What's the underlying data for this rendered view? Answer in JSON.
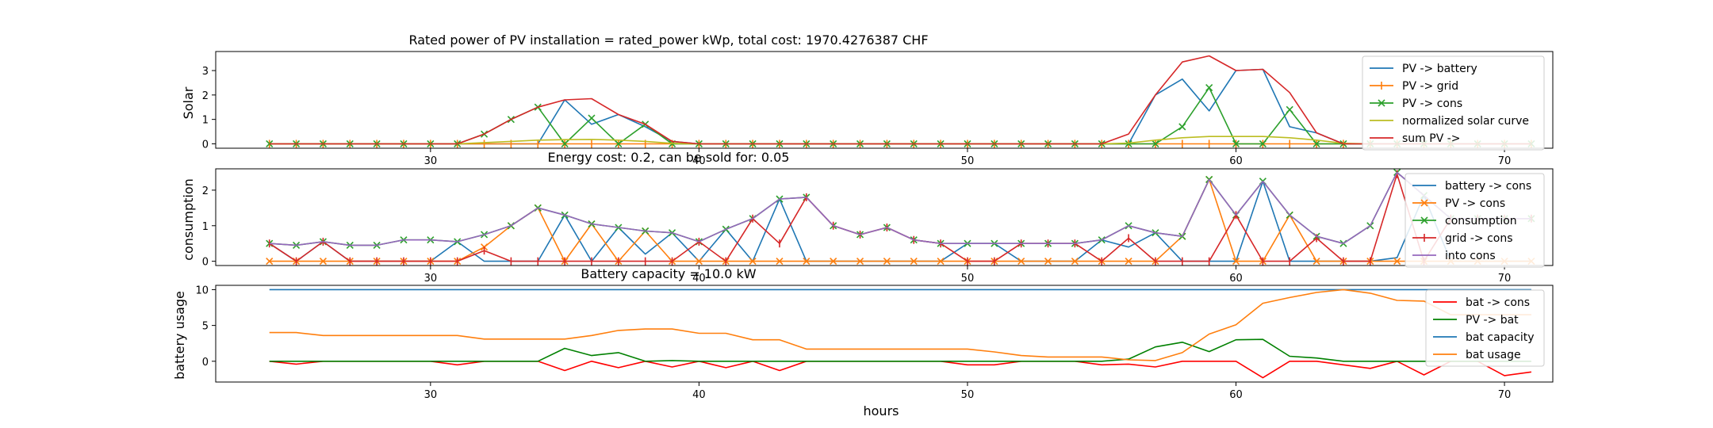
{
  "colors": {
    "c_blue": "#1f77b4",
    "c_orange": "#ff7f0e",
    "c_green": "#2ca02c",
    "c_olive": "#bcbd22",
    "c_red": "#d62728",
    "c_purple": "#9467bd",
    "red": "#ff0000",
    "green": "#008000"
  },
  "chart_data": [
    {
      "type": "line",
      "title": "Rated power of PV installation = rated_power kWp, total cost: 1970.4276387 CHF",
      "xlabel": "",
      "ylabel": "Solar",
      "xlim": [
        22,
        71.8
      ],
      "ylim": [
        -0.18,
        3.78
      ],
      "xticks": [
        30,
        40,
        50,
        60,
        70
      ],
      "yticks": [
        0,
        1,
        2,
        3
      ],
      "legend_position": "top-right",
      "grid": false,
      "x": [
        24,
        25,
        26,
        27,
        28,
        29,
        30,
        31,
        32,
        33,
        34,
        35,
        36,
        37,
        38,
        39,
        40,
        41,
        42,
        43,
        44,
        45,
        46,
        47,
        48,
        49,
        50,
        51,
        52,
        53,
        54,
        55,
        56,
        57,
        58,
        59,
        60,
        61,
        62,
        63,
        64,
        65,
        66,
        67,
        68,
        69,
        70,
        71
      ],
      "series": [
        {
          "name": "PV -> battery",
          "color": "c_blue",
          "marker": "none",
          "values": [
            0,
            0,
            0,
            0,
            0,
            0,
            0,
            0,
            0,
            0,
            0,
            1.8,
            0.8,
            1.2,
            0.7,
            0.1,
            0,
            0,
            0,
            0,
            0,
            0,
            0,
            0,
            0,
            0,
            0,
            0,
            0,
            0,
            0,
            0,
            0,
            2,
            2.65,
            1.35,
            3,
            3.05,
            0.7,
            0.45,
            0,
            0,
            0,
            0,
            0,
            0,
            0,
            0
          ]
        },
        {
          "name": "PV -> grid",
          "color": "c_orange",
          "marker": "|",
          "values": [
            0,
            0,
            0,
            0,
            0,
            0,
            0,
            0,
            0,
            0,
            0,
            0,
            0,
            0,
            0,
            0,
            0,
            0,
            0,
            0,
            0,
            0,
            0,
            0,
            0,
            0,
            0,
            0,
            0,
            0,
            0,
            0,
            0,
            0,
            0,
            0,
            0,
            0,
            0,
            0,
            0,
            0,
            0,
            0,
            0,
            0,
            0,
            0
          ]
        },
        {
          "name": "PV -> cons",
          "color": "c_green",
          "marker": "x",
          "values": [
            0,
            0,
            0,
            0,
            0,
            0,
            0,
            0,
            0.4,
            1,
            1.5,
            0,
            1.05,
            0,
            0.8,
            0,
            0,
            0,
            0,
            0,
            0,
            0,
            0,
            0,
            0,
            0,
            0,
            0,
            0,
            0,
            0,
            0,
            0,
            0,
            0.7,
            2.3,
            0,
            0,
            1.4,
            0,
            0,
            0,
            0,
            0,
            0,
            0,
            0,
            0
          ]
        },
        {
          "name": "normalized solar curve",
          "color": "c_olive",
          "marker": "none",
          "values": [
            0,
            0,
            0,
            0,
            0,
            0,
            0,
            0,
            0.05,
            0.1,
            0.15,
            0.17,
            0.18,
            0.15,
            0.1,
            0.02,
            0,
            0,
            0,
            0,
            0,
            0,
            0,
            0,
            0,
            0,
            0,
            0,
            0,
            0,
            0,
            0,
            0.03,
            0.15,
            0.25,
            0.3,
            0.3,
            0.3,
            0.25,
            0.15,
            0.02,
            0,
            0,
            0,
            0,
            0,
            0,
            0
          ]
        },
        {
          "name": "sum PV ->",
          "color": "c_red",
          "marker": "none",
          "values": [
            0,
            0,
            0,
            0,
            0,
            0,
            0,
            0,
            0.4,
            1,
            1.5,
            1.8,
            1.85,
            1.2,
            0.8,
            0.1,
            0,
            0,
            0,
            0,
            0,
            0,
            0,
            0,
            0,
            0,
            0,
            0,
            0,
            0,
            0,
            0,
            0.4,
            2,
            3.35,
            3.6,
            3,
            3.05,
            2.1,
            0.45,
            0,
            0,
            0,
            0,
            0,
            0,
            0,
            0
          ]
        }
      ]
    },
    {
      "type": "line",
      "title": "Energy cost: 0.2, can be sold for: 0.05",
      "xlabel": "",
      "ylabel": "consumption",
      "xlim": [
        22,
        71.8
      ],
      "ylim": [
        -0.12,
        2.6
      ],
      "xticks": [
        30,
        40,
        50,
        60,
        70
      ],
      "yticks": [
        0,
        1,
        2
      ],
      "legend_position": "top-right",
      "grid": false,
      "x": [
        24,
        25,
        26,
        27,
        28,
        29,
        30,
        31,
        32,
        33,
        34,
        35,
        36,
        37,
        38,
        39,
        40,
        41,
        42,
        43,
        44,
        45,
        46,
        47,
        48,
        49,
        50,
        51,
        52,
        53,
        54,
        55,
        56,
        57,
        58,
        59,
        60,
        61,
        62,
        63,
        64,
        65,
        66,
        67,
        68,
        69,
        70,
        71
      ],
      "series": [
        {
          "name": "battery -> cons",
          "color": "c_blue",
          "marker": "none",
          "values": [
            0.5,
            0,
            0.55,
            0,
            0,
            0,
            0,
            0.55,
            0,
            0,
            0,
            1.3,
            0,
            0.95,
            0.2,
            0.8,
            0,
            0.9,
            0,
            1.75,
            0,
            0,
            0,
            0,
            0,
            0,
            0.5,
            0.5,
            0,
            0,
            0,
            0.6,
            0.4,
            0.8,
            0,
            0,
            0,
            2.25,
            0,
            0,
            0,
            0,
            0.1,
            1.85,
            0,
            0,
            0,
            0
          ]
        },
        {
          "name": "PV -> cons",
          "color": "c_orange",
          "marker": "x",
          "values": [
            0,
            0,
            0,
            0,
            0,
            0,
            0,
            0,
            0.4,
            1,
            1.5,
            0,
            1.05,
            0,
            0.85,
            0,
            0,
            0,
            0,
            0,
            0,
            0,
            0,
            0,
            0,
            0,
            0,
            0,
            0,
            0,
            0,
            0,
            0,
            0,
            0.7,
            2.3,
            0,
            0,
            1.3,
            0,
            0,
            0,
            0,
            0,
            0,
            0,
            0,
            0
          ]
        },
        {
          "name": "consumption",
          "color": "c_green",
          "marker": "x",
          "values": [
            0.5,
            0.45,
            0.55,
            0.45,
            0.45,
            0.6,
            0.6,
            0.55,
            0.75,
            1,
            1.5,
            1.3,
            1.05,
            0.95,
            0.85,
            0.8,
            0.55,
            0.9,
            1.2,
            1.75,
            1.8,
            1,
            0.75,
            0.95,
            0.6,
            0.5,
            0.5,
            0.5,
            0.5,
            0.5,
            0.5,
            0.6,
            1,
            0.8,
            0.7,
            2.3,
            1.3,
            2.25,
            1.3,
            0.7,
            0.5,
            1,
            2.5,
            1.85,
            1.2,
            1.2,
            1.2,
            1.2
          ]
        },
        {
          "name": "grid -> cons",
          "color": "c_red",
          "marker": "|",
          "values": [
            0.5,
            0,
            0.55,
            0,
            0,
            0,
            0,
            0,
            0.3,
            0,
            0,
            0,
            0,
            0,
            0,
            0,
            0.55,
            0,
            1.2,
            0.5,
            1.8,
            1,
            0.75,
            0.95,
            0.6,
            0.5,
            0,
            0,
            0.5,
            0.5,
            0.5,
            0,
            0.65,
            0,
            0,
            0,
            1.3,
            0,
            0,
            0.65,
            0,
            0,
            2.45,
            0,
            1.2,
            1.2,
            1.2,
            1.2
          ]
        },
        {
          "name": "into cons",
          "color": "c_purple",
          "marker": "none",
          "values": [
            0.5,
            0.45,
            0.55,
            0.45,
            0.45,
            0.6,
            0.6,
            0.55,
            0.75,
            1,
            1.5,
            1.3,
            1.05,
            0.95,
            0.85,
            0.8,
            0.55,
            0.9,
            1.2,
            1.75,
            1.8,
            1,
            0.75,
            0.95,
            0.6,
            0.5,
            0.5,
            0.5,
            0.5,
            0.5,
            0.5,
            0.6,
            1,
            0.8,
            0.7,
            2.3,
            1.3,
            2.25,
            1.3,
            0.7,
            0.5,
            1,
            2.5,
            1.85,
            1.2,
            1.2,
            1.2,
            1.2
          ]
        }
      ]
    },
    {
      "type": "line",
      "title": "Battery capacity = 10.0 kW",
      "xlabel": "hours",
      "ylabel": "battery usage",
      "xlim": [
        22,
        71.8
      ],
      "ylim": [
        -2.9,
        10.6
      ],
      "xticks": [
        30,
        40,
        50,
        60,
        70
      ],
      "yticks": [
        0,
        5,
        10
      ],
      "legend_position": "top-right",
      "grid": false,
      "x": [
        24,
        25,
        26,
        27,
        28,
        29,
        30,
        31,
        32,
        33,
        34,
        35,
        36,
        37,
        38,
        39,
        40,
        41,
        42,
        43,
        44,
        45,
        46,
        47,
        48,
        49,
        50,
        51,
        52,
        53,
        54,
        55,
        56,
        57,
        58,
        59,
        60,
        61,
        62,
        63,
        64,
        65,
        66,
        67,
        68,
        69,
        70,
        71
      ],
      "series": [
        {
          "name": "bat -> cons",
          "color": "red",
          "marker": "none",
          "values": [
            0,
            -0.4,
            0,
            0,
            0,
            0,
            0,
            -0.5,
            0,
            0,
            0,
            -1.3,
            0,
            -0.9,
            0,
            -0.8,
            0,
            -0.9,
            0,
            -1.3,
            0,
            0,
            0,
            0,
            0,
            0,
            -0.5,
            -0.5,
            0,
            0,
            0,
            -0.5,
            -0.4,
            -0.8,
            0,
            0,
            0,
            -2.3,
            0,
            0,
            -0.5,
            -1,
            0,
            -1.9,
            0,
            0,
            -2,
            -1.5
          ]
        },
        {
          "name": "PV -> bat",
          "color": "green",
          "marker": "none",
          "values": [
            0,
            0,
            0,
            0,
            0,
            0,
            0,
            0,
            0,
            0,
            0,
            1.8,
            0.8,
            1.2,
            0,
            0.1,
            0,
            0,
            0,
            0,
            0,
            0,
            0,
            0,
            0,
            0,
            0,
            0,
            0,
            0,
            0,
            0,
            0.3,
            2,
            2.65,
            1.35,
            3,
            3.05,
            0.7,
            0.45,
            0,
            0,
            0,
            0,
            0,
            0,
            0,
            0
          ]
        },
        {
          "name": "bat capacity",
          "color": "c_blue",
          "marker": "none",
          "values": [
            10,
            10,
            10,
            10,
            10,
            10,
            10,
            10,
            10,
            10,
            10,
            10,
            10,
            10,
            10,
            10,
            10,
            10,
            10,
            10,
            10,
            10,
            10,
            10,
            10,
            10,
            10,
            10,
            10,
            10,
            10,
            10,
            10,
            10,
            10,
            10,
            10,
            10,
            10,
            10,
            10,
            10,
            10,
            10,
            10,
            10,
            10,
            10
          ]
        },
        {
          "name": "bat usage",
          "color": "c_orange",
          "marker": "none",
          "values": [
            4,
            4,
            3.6,
            3.6,
            3.6,
            3.6,
            3.6,
            3.6,
            3.1,
            3.1,
            3.1,
            3.1,
            3.6,
            4.3,
            4.5,
            4.5,
            3.9,
            3.9,
            3,
            3,
            1.7,
            1.7,
            1.7,
            1.7,
            1.7,
            1.7,
            1.7,
            1.3,
            0.8,
            0.6,
            0.6,
            0.6,
            0.2,
            0.1,
            1.2,
            3.8,
            5.1,
            8.1,
            8.9,
            9.6,
            10,
            9.5,
            8.5,
            8.4,
            6.5,
            6.5,
            6.5,
            6.5
          ]
        }
      ]
    }
  ]
}
